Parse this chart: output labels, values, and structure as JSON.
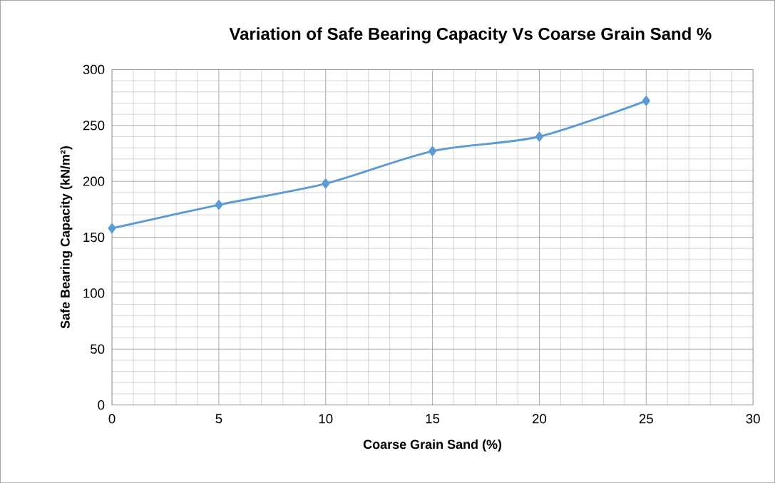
{
  "chart_data": {
    "type": "line",
    "title": "Variation of Safe Bearing Capacity Vs Coarse Grain Sand %",
    "xlabel": "Coarse Grain Sand (%)",
    "ylabel": "Safe Bearing Capacity (kN/m²)",
    "x": [
      0,
      5,
      10,
      15,
      20,
      25
    ],
    "series": [
      {
        "color": "#5b9bd5",
        "values": [
          158,
          179,
          198,
          227,
          240,
          272
        ]
      }
    ],
    "xlim": [
      0,
      30
    ],
    "ylim": [
      0,
      300
    ],
    "xticks": [
      0,
      5,
      10,
      15,
      20,
      25,
      30
    ],
    "yticks": [
      0,
      50,
      100,
      150,
      200,
      250,
      300
    ],
    "grid": true,
    "marker": "diamond",
    "line_style": "solid"
  }
}
